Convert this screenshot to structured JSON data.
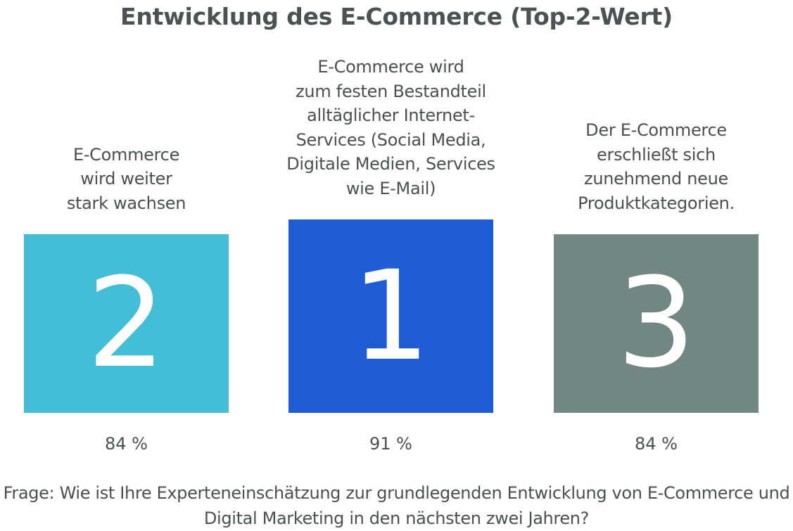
{
  "chart_data": {
    "type": "bar",
    "title": "Entwicklung des E-Commerce (Top-2-Wert)",
    "categories": [
      "E-Commerce wird weiter stark wachsen",
      "E-Commerce wird zum festen Bestandteil alltäglicher Internet-Services (Social Media, Digitale Medien, Services wie E-Mail)",
      "Der E-Commerce erschließt sich zunehmend neue Produktkategorien."
    ],
    "values": [
      84,
      91,
      84
    ],
    "value_labels": [
      "84 %",
      "91 %",
      "84 %"
    ],
    "ranks": [
      "2",
      "1",
      "3"
    ],
    "label_lines": [
      [
        "E-Commerce",
        "wird weiter",
        "stark wachsen"
      ],
      [
        "E-Commerce wird",
        "zum festen Bestandteil",
        "alltäglicher Internet-",
        "Services (Social Media,",
        "Digitale Medien, Services",
        "wie E-Mail)"
      ],
      [
        "Der E-Commerce",
        "erschließt sich",
        "zunehmend neue",
        "Produktkategorien."
      ]
    ],
    "colors": [
      "#44bdd6",
      "#1e5dd6",
      "#728684"
    ],
    "xlabel": "",
    "ylabel": "",
    "grid": false
  },
  "footer": {
    "question_line1": "Frage: Wie ist Ihre Experteneinschätzung zur grundlegenden Entwicklung von E-Commerce und",
    "question_line2": "Digital Marketing in den nächsten zwei Jahren?"
  }
}
